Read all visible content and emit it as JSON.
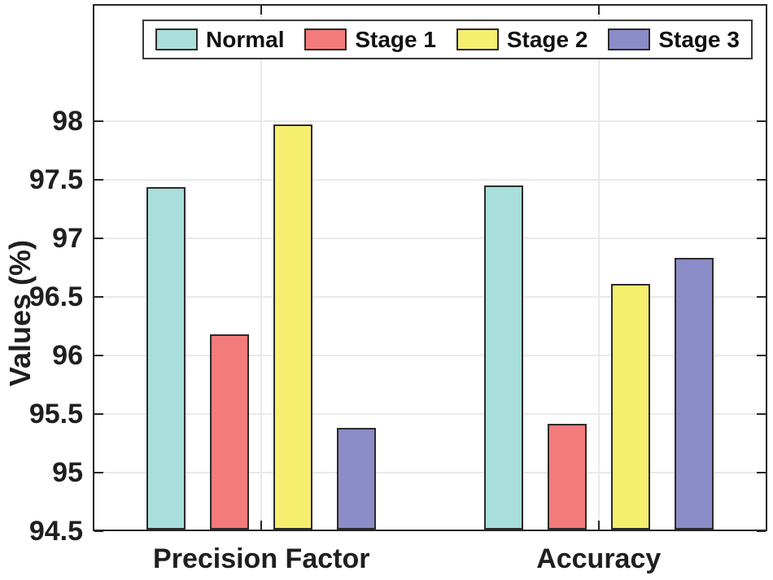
{
  "chart_data": {
    "type": "bar",
    "title": "",
    "categories": [
      "Precision Factor",
      "Accuracy"
    ],
    "series": [
      {
        "name": "Normal",
        "color": "#A8DEDB",
        "values": [
          97.44,
          97.45
        ]
      },
      {
        "name": "Stage 1",
        "color": "#F47B7B",
        "values": [
          96.18,
          95.42
        ]
      },
      {
        "name": "Stage 2",
        "color": "#F6EE6F",
        "values": [
          97.97,
          96.61
        ]
      },
      {
        "name": "Stage 3",
        "color": "#8B8CC8",
        "values": [
          95.38,
          96.83
        ]
      }
    ],
    "xlabel": "",
    "ylabel": "Values (%)",
    "ylim": [
      94.5,
      99
    ],
    "yticks": [
      94.5,
      95,
      95.5,
      96,
      96.5,
      97,
      97.5,
      98
    ],
    "grid": true,
    "legend_position": "top",
    "bar_edge_color": "#2B2B2B",
    "axis_color": "#262626",
    "grid_color": "#E9E9E9",
    "text_color": "#1F1F1F"
  }
}
